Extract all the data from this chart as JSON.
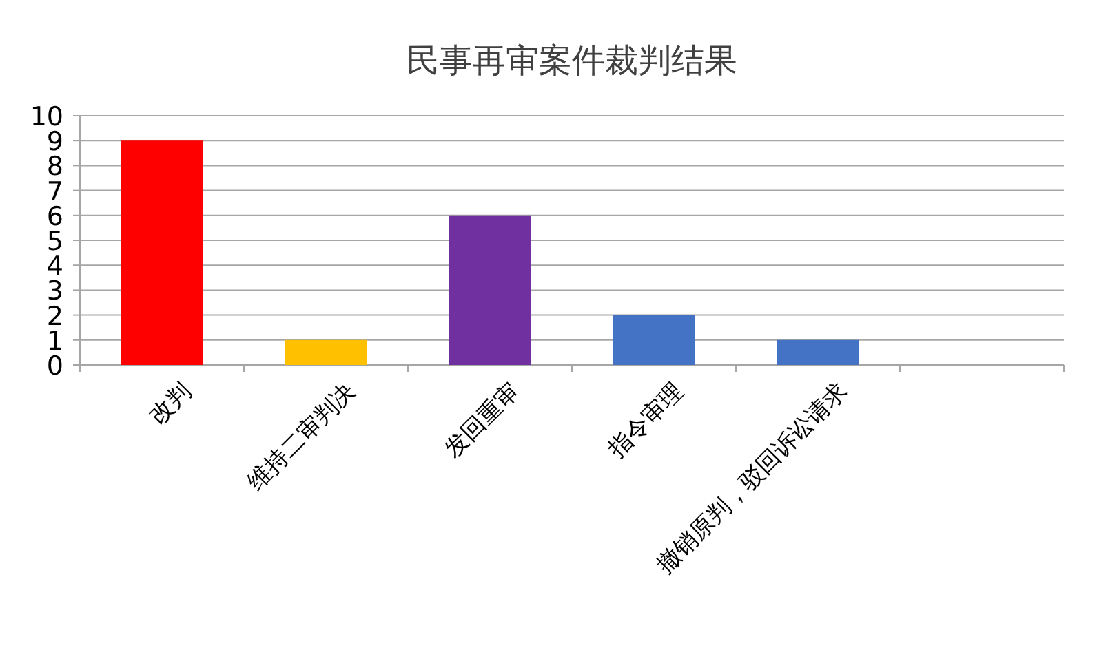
{
  "chart_data": {
    "type": "bar",
    "title": "民事再审案件裁判结果",
    "categories": [
      "改判",
      "维持二审判决",
      "发回重审",
      "指令审理",
      "撤销原判，驳回诉讼请求",
      null
    ],
    "values": [
      9,
      1,
      6,
      2,
      1,
      null
    ],
    "colors": [
      "#ff0000",
      "#ffc000",
      "#7030a0",
      "#4472c4",
      "#4472c4",
      null
    ],
    "ylim": [
      0,
      10
    ],
    "yticks": [
      0,
      1,
      2,
      3,
      4,
      5,
      6,
      7,
      8,
      9,
      10
    ],
    "grid": "y"
  }
}
